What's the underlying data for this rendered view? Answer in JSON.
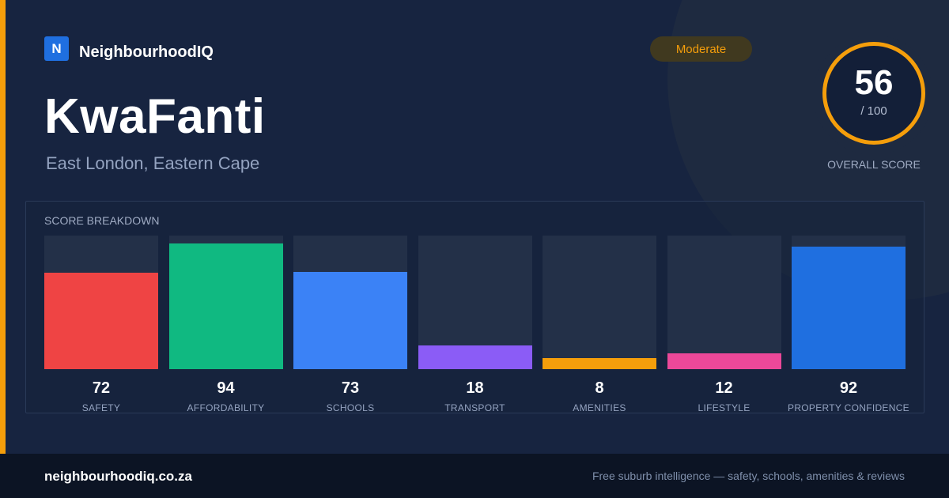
{
  "brand": {
    "logo_letter": "N",
    "name": "NeighbourhoodIQ"
  },
  "suburb": {
    "name": "KwaFanti",
    "location": "East London, Eastern Cape"
  },
  "badge": {
    "label": "Moderate"
  },
  "overall": {
    "score": "56",
    "max": "/ 100",
    "caption": "OVERALL SCORE"
  },
  "breakdown": {
    "heading": "SCORE BREAKDOWN"
  },
  "chart_data": {
    "type": "bar",
    "categories": [
      "SAFETY",
      "AFFORDABILITY",
      "SCHOOLS",
      "TRANSPORT",
      "AMENITIES",
      "LIFESTYLE",
      "PROPERTY CONFIDENCE"
    ],
    "values": [
      72,
      94,
      73,
      18,
      8,
      12,
      92
    ],
    "colors": [
      "#ef4444",
      "#10b981",
      "#3b82f6",
      "#8b5cf6",
      "#f59e0b",
      "#ec4899",
      "#1f6fe0"
    ],
    "ylim": [
      0,
      100
    ],
    "title": "SCORE BREAKDOWN",
    "xlabel": "",
    "ylabel": ""
  },
  "footer": {
    "domain": "neighbourhoodiq.co.za",
    "tagline": "Free suburb intelligence — safety, schools, amenities & reviews"
  },
  "colors": {
    "accent": "#f59e0b",
    "background": "#172440",
    "brand": "#1f6fe0"
  }
}
